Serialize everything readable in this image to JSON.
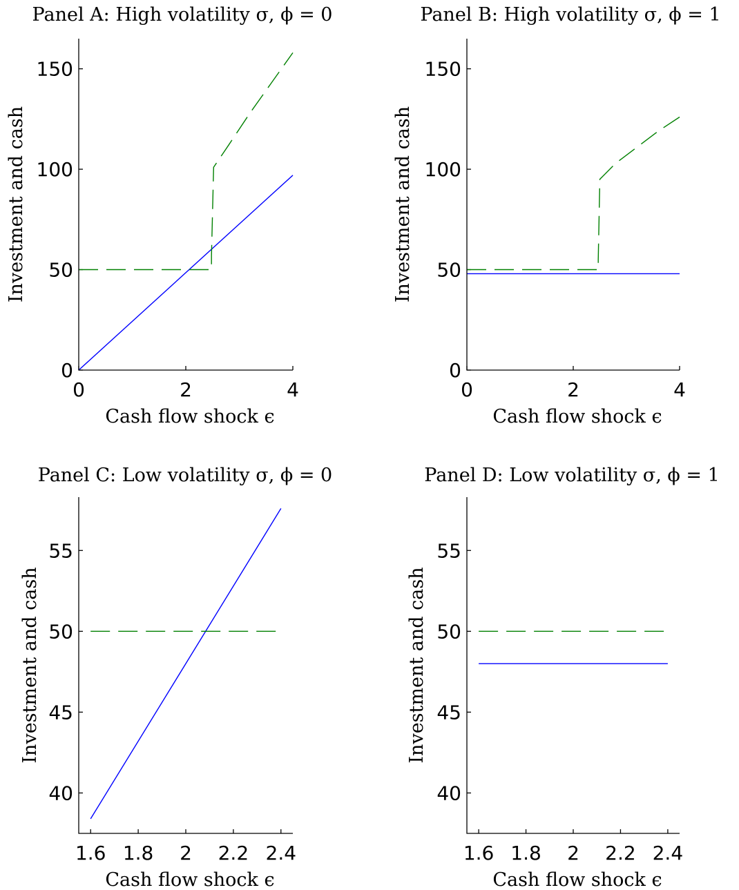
{
  "chart_data": [
    {
      "type": "line",
      "title": "Panel A: High volatility σ, ϕ = 0",
      "xlabel": "Cash flow shock ϵ",
      "ylabel": "Investment and cash",
      "xlim": [
        0,
        4
      ],
      "ylim": [
        0,
        165
      ],
      "xticks": [
        0,
        2,
        4
      ],
      "xtick_labels": [
        "0",
        "2",
        "4"
      ],
      "yticks": [
        0,
        50,
        100,
        150
      ],
      "ytick_labels": [
        "0",
        "50",
        "100",
        "150"
      ],
      "grid": false,
      "series": [
        {
          "style": "solid",
          "color": "#0000ff",
          "x": [
            0,
            4
          ],
          "y": [
            0,
            97
          ]
        },
        {
          "style": "dashed",
          "color": "#008000",
          "x": [
            0,
            2.45,
            2.48,
            2.48,
            2.52,
            2.8,
            3.2,
            3.6,
            4.0
          ],
          "y": [
            50,
            50,
            50,
            57,
            101,
            112,
            128,
            143,
            158
          ]
        }
      ]
    },
    {
      "type": "line",
      "title": "Panel B: High volatility σ, ϕ = 1",
      "xlabel": "Cash flow shock ϵ",
      "ylabel": "Investment and cash",
      "xlim": [
        0,
        4
      ],
      "ylim": [
        0,
        165
      ],
      "xticks": [
        0,
        2,
        4
      ],
      "xtick_labels": [
        "0",
        "2",
        "4"
      ],
      "yticks": [
        0,
        50,
        100,
        150
      ],
      "ytick_labels": [
        "0",
        "50",
        "100",
        "150"
      ],
      "grid": false,
      "series": [
        {
          "style": "solid",
          "color": "#0000ff",
          "x": [
            0,
            4
          ],
          "y": [
            48,
            48
          ]
        },
        {
          "style": "dashed",
          "color": "#008000",
          "x": [
            0,
            2.47,
            2.47,
            2.47,
            2.5,
            2.8,
            3.2,
            3.6,
            4.0
          ],
          "y": [
            50,
            50,
            50,
            55,
            95,
            103,
            111,
            119,
            126
          ]
        }
      ]
    },
    {
      "type": "line",
      "title": "Panel C: Low volatility σ, ϕ = 0",
      "xlabel": "Cash flow shock ϵ",
      "ylabel": "Investment and cash",
      "xlim": [
        1.55,
        2.45
      ],
      "ylim": [
        37.5,
        58.3
      ],
      "xticks": [
        1.6,
        1.8,
        2,
        2.2,
        2.4
      ],
      "xtick_labels": [
        "1.6",
        "1.8",
        "2",
        "2.2",
        "2.4"
      ],
      "yticks": [
        40,
        45,
        50,
        55
      ],
      "ytick_labels": [
        "40",
        "45",
        "50",
        "55"
      ],
      "grid": false,
      "series": [
        {
          "style": "solid",
          "color": "#0000ff",
          "x": [
            1.6,
            2.4
          ],
          "y": [
            38.4,
            57.6
          ]
        },
        {
          "style": "dashed",
          "color": "#008000",
          "x": [
            1.6,
            2.4
          ],
          "y": [
            50,
            50
          ]
        }
      ]
    },
    {
      "type": "line",
      "title": "Panel D: Low volatility σ, ϕ = 1",
      "xlabel": "Cash flow shock ϵ",
      "ylabel": "Investment and cash",
      "xlim": [
        1.55,
        2.45
      ],
      "ylim": [
        37.5,
        58.3
      ],
      "xticks": [
        1.6,
        1.8,
        2,
        2.2,
        2.4
      ],
      "xtick_labels": [
        "1.6",
        "1.8",
        "2",
        "2.2",
        "2.4"
      ],
      "yticks": [
        40,
        45,
        50,
        55
      ],
      "ytick_labels": [
        "40",
        "45",
        "50",
        "55"
      ],
      "grid": false,
      "series": [
        {
          "style": "solid",
          "color": "#0000ff",
          "x": [
            1.6,
            2.4
          ],
          "y": [
            48,
            48
          ]
        },
        {
          "style": "dashed",
          "color": "#008000",
          "x": [
            1.6,
            2.4
          ],
          "y": [
            50,
            50
          ]
        }
      ]
    }
  ]
}
